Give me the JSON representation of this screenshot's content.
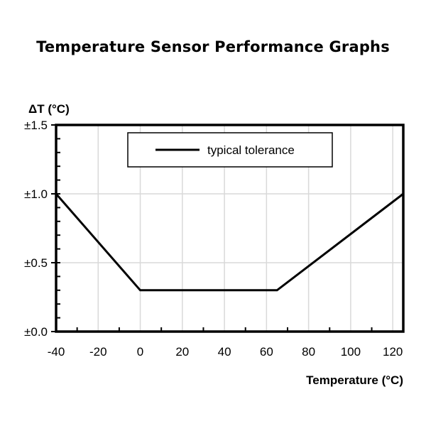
{
  "page": {
    "title": "Temperature Sensor Performance Graphs"
  },
  "chart_data": {
    "type": "line",
    "title": "Temperature Sensor Performance Graphs",
    "xlabel": "Temperature (°C)",
    "ylabel": "ΔT (°C)",
    "xlim": [
      -40,
      125
    ],
    "ylim": [
      0,
      1.5
    ],
    "x_ticks": [
      -40,
      -20,
      0,
      20,
      40,
      60,
      80,
      100,
      120
    ],
    "x_tick_labels": [
      "-40",
      "-20",
      "0",
      "20",
      "40",
      "60",
      "80",
      "100",
      "120"
    ],
    "y_ticks": [
      0,
      0.5,
      1.0,
      1.5
    ],
    "y_tick_labels": [
      "±0.0",
      "±0.5",
      "±1.0",
      "±1.5"
    ],
    "grid": true,
    "legend": {
      "position": "upper center",
      "entries": [
        "typical tolerance"
      ]
    },
    "series": [
      {
        "name": "typical tolerance",
        "color": "#000000",
        "x": [
          -40,
          0,
          65,
          125
        ],
        "y": [
          1.0,
          0.3,
          0.3,
          1.0
        ]
      }
    ]
  }
}
